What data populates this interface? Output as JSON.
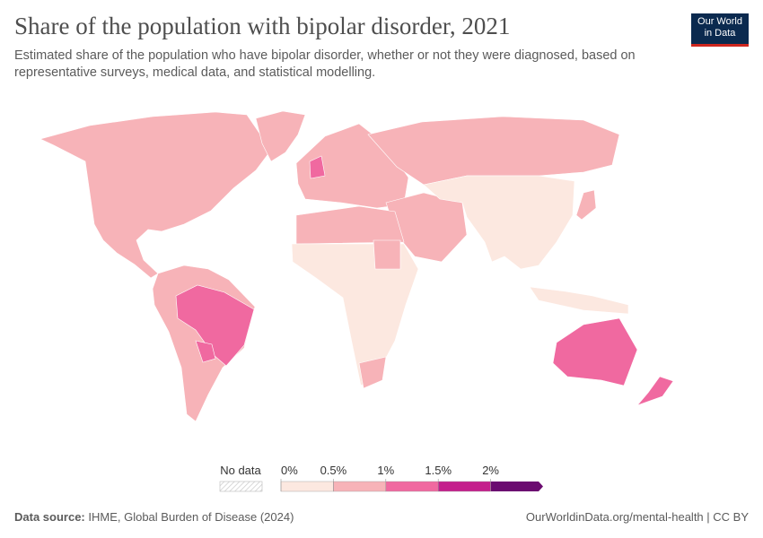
{
  "header": {
    "title": "Share of the population with bipolar disorder, 2021",
    "subtitle": "Estimated share of the population who have bipolar disorder, whether or not they were diagnosed, based on representative surveys, medical data, and statistical modelling.",
    "logo_line1": "Our World",
    "logo_line2": "in Data"
  },
  "legend": {
    "no_data_label": "No data",
    "xlim": [
      0,
      2.5
    ],
    "ticks": [
      {
        "value": 0,
        "label": "0%"
      },
      {
        "value": 0.5,
        "label": "0.5%"
      },
      {
        "value": 1,
        "label": "1%"
      },
      {
        "value": 1.5,
        "label": "1.5%"
      },
      {
        "value": 2,
        "label": "2%"
      }
    ],
    "colors": [
      "#fce8e0",
      "#f7b3b8",
      "#f069a0",
      "#c41f8c",
      "#6b0b70"
    ]
  },
  "footer": {
    "source_label": "Data source:",
    "source": "IHME, Global Burden of Disease (2024)",
    "url": "OurWorldinData.org/mental-health | CC BY"
  }
}
